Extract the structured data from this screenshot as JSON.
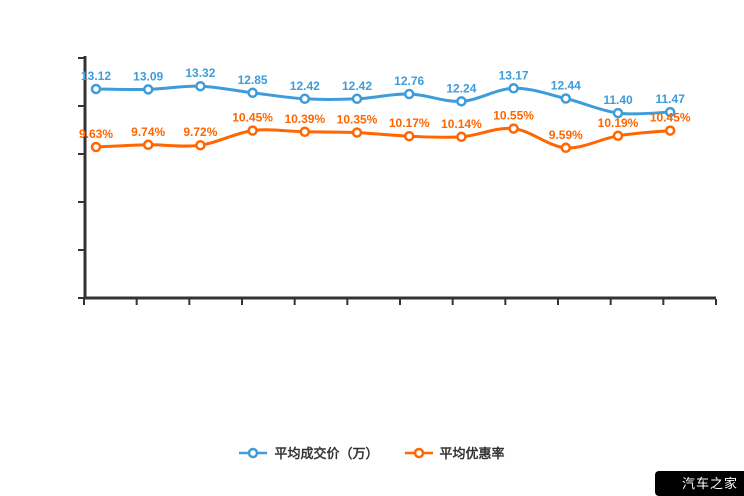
{
  "chart_data": {
    "type": "line",
    "title": "",
    "categories": [
      "",
      "",
      "",
      "",
      "",
      "",
      "",
      "",
      "",
      "",
      "",
      ""
    ],
    "series": [
      {
        "name": "平均成交价（万）",
        "color": "#3e9cdb",
        "values": [
          13.12,
          13.09,
          13.32,
          12.85,
          12.42,
          12.42,
          12.76,
          12.24,
          13.17,
          12.44,
          11.4,
          11.47
        ],
        "labels": [
          "13.12",
          "13.09",
          "13.32",
          "12.85",
          "12.42",
          "12.42",
          "12.76",
          "12.24",
          "13.17",
          "12.44",
          "11.40",
          "11.47"
        ]
      },
      {
        "name": "平均优惠率",
        "color": "#ff6600",
        "values": [
          9.63,
          9.74,
          9.72,
          10.45,
          10.39,
          10.35,
          10.17,
          10.14,
          10.55,
          9.59,
          10.19,
          10.45
        ],
        "labels": [
          "9.63%",
          "9.74%",
          "9.72%",
          "10.45%",
          "10.39%",
          "10.35%",
          "10.17%",
          "10.14%",
          "10.55%",
          "9.59%",
          "10.19%",
          "10.45%"
        ]
      }
    ],
    "legend_position": "bottom",
    "grid": false,
    "x_tick_labels_visible": false,
    "y_tick_labels_visible": false,
    "y_tick_count": 6,
    "x_tick_count": 13
  },
  "legend": {
    "items": [
      {
        "label": "平均成交价（万）"
      },
      {
        "label": "平均优惠率"
      }
    ]
  },
  "watermark": {
    "text": "汽车之家",
    "bg": "#000000",
    "fg": "#ffffff"
  },
  "colors": {
    "axis": "#333333",
    "price_series": "#3e9cdb",
    "discount_series": "#ff6600",
    "marker_fill": "#ffffff"
  }
}
